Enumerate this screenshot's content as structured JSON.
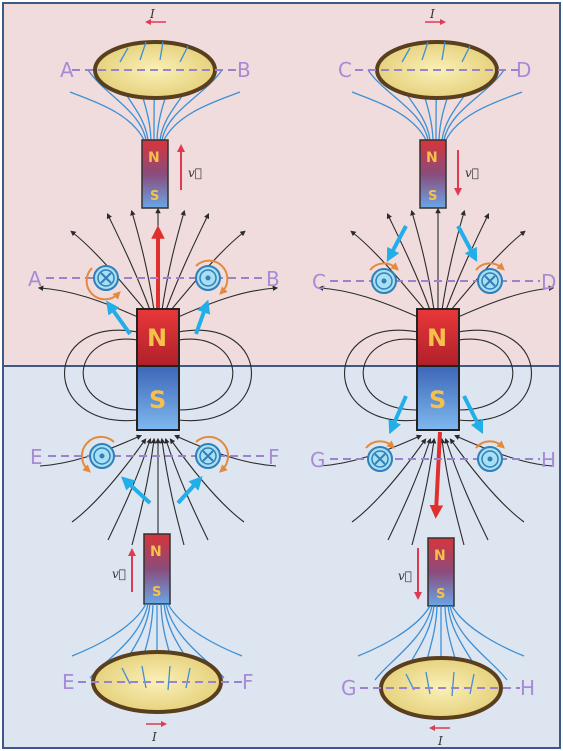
{
  "labels": {
    "a": "A",
    "b": "B",
    "c": "C",
    "d": "D",
    "e": "E",
    "f": "F",
    "g": "G",
    "h": "H"
  },
  "magnet": {
    "north": "N",
    "south": "S"
  },
  "velocity_symbol": "v⃗",
  "current_symbol": "I",
  "colors": {
    "top_panel": "#f0dcdc",
    "bottom_panel": "#dde5f1",
    "velocity_arrow": "#e0302e",
    "force_arrow": "#22aee8",
    "dashed_axis": "#9a82cc",
    "loop_fill": "#eedd8e",
    "loop_edge": "#5a3f1e",
    "field_line_blue": "#3d8fd6"
  }
}
